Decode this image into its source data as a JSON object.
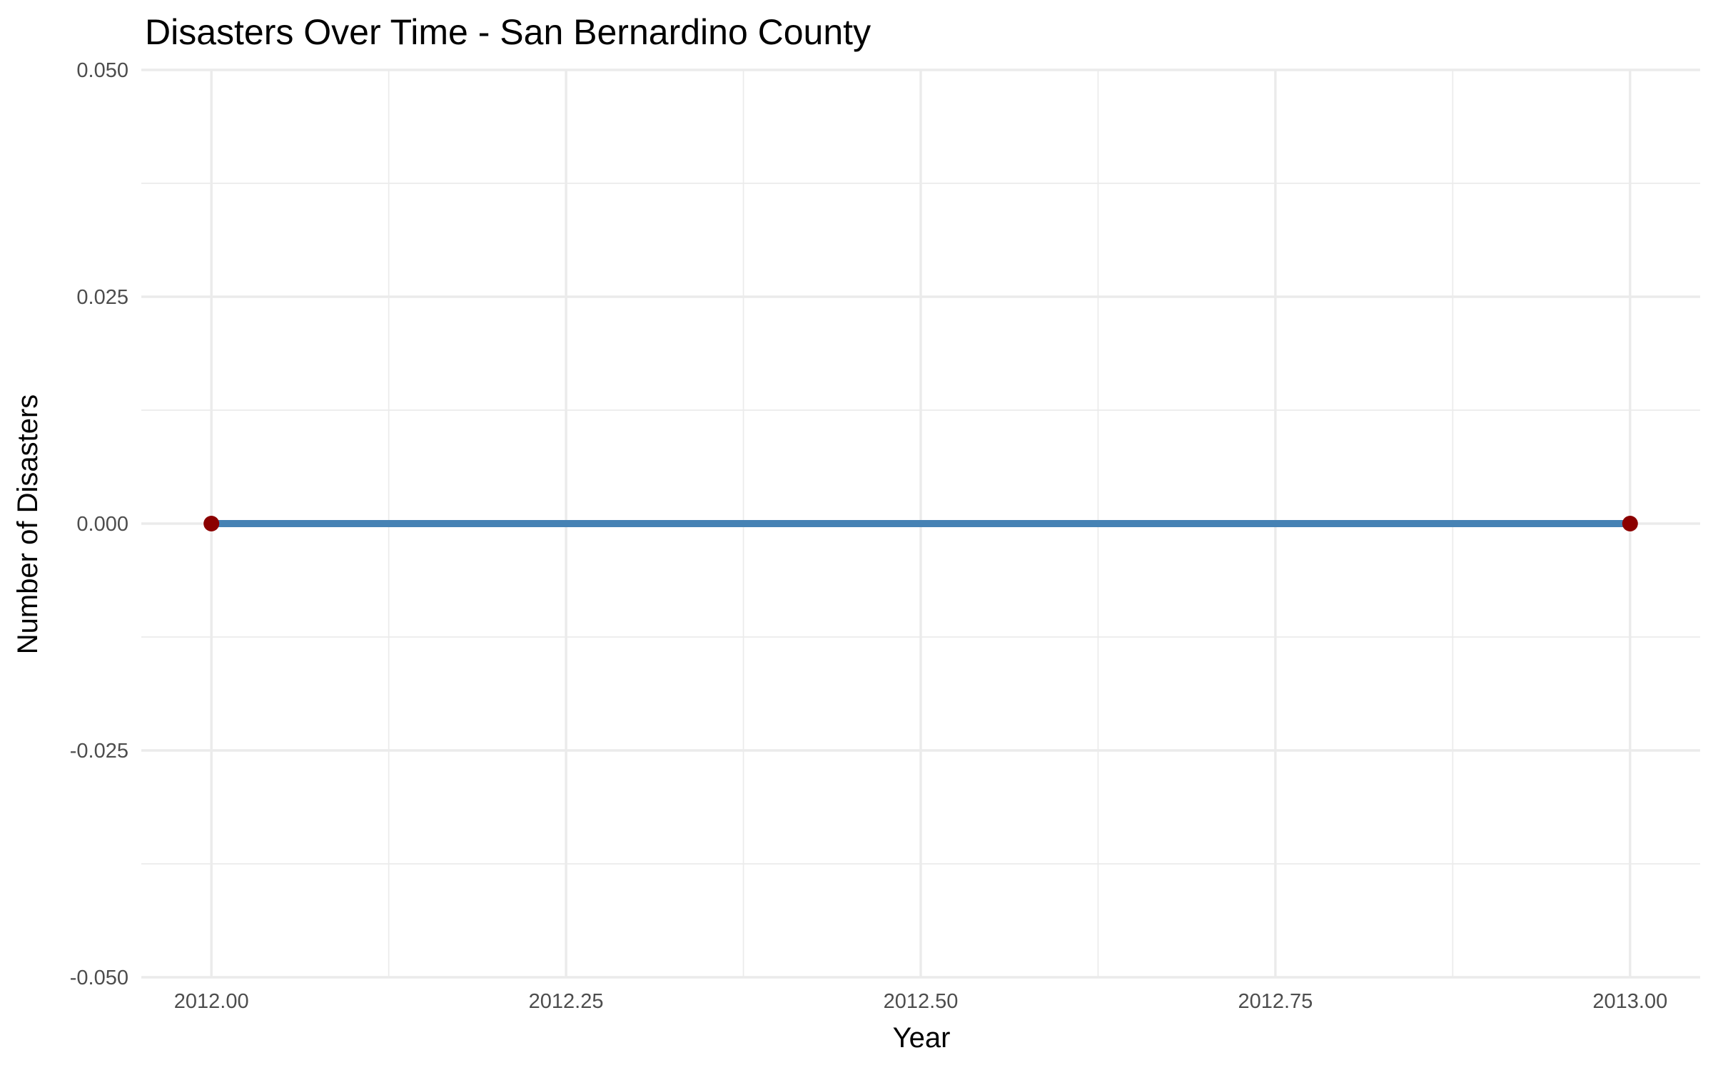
{
  "chart_data": {
    "type": "line",
    "title": "Disasters Over Time - San Bernardino County",
    "xlabel": "Year",
    "ylabel": "Number of Disasters",
    "xlim": [
      2011.9506,
      2013.0494
    ],
    "ylim": [
      -0.05,
      0.05
    ],
    "x_ticks": [
      2012.0,
      2012.25,
      2012.5,
      2012.75,
      2013.0
    ],
    "x_tick_labels": [
      "2012.00",
      "2012.25",
      "2012.50",
      "2012.75",
      "2013.00"
    ],
    "y_ticks": [
      -0.05,
      -0.025,
      0.0,
      0.025,
      0.05
    ],
    "y_tick_labels": [
      "-0.050",
      "-0.025",
      "0.000",
      "0.025",
      "0.050"
    ],
    "grid": true,
    "series": [
      {
        "x": [
          2012,
          2013
        ],
        "y": [
          0,
          0
        ],
        "line_color": "#4682b4",
        "point_color": "#8b0000"
      }
    ]
  }
}
